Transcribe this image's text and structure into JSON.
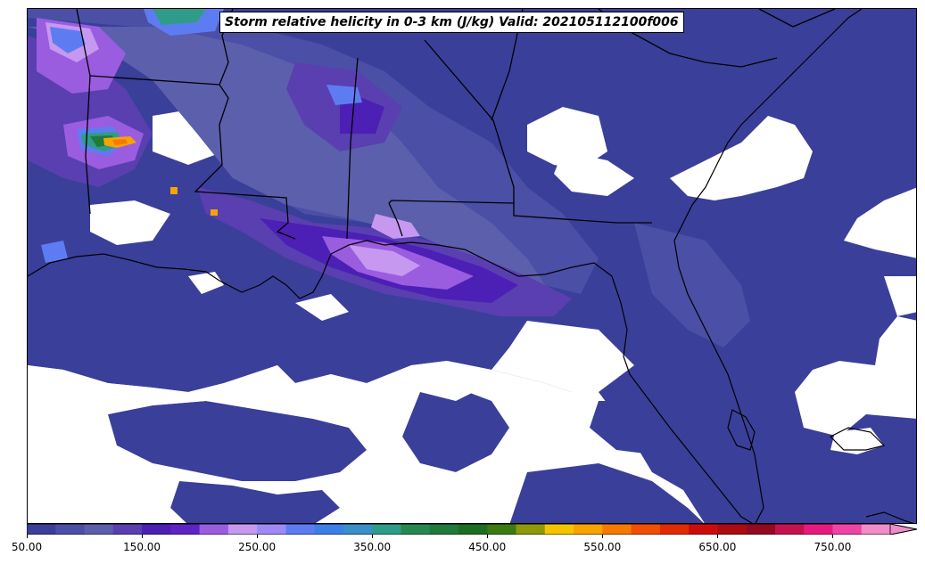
{
  "title": "Storm relative helicity in 0-3 km (J/kg) Valid: 202105112100f006",
  "colorbar": {
    "min": 50,
    "max": 800,
    "step": 25,
    "extend": "max",
    "tick_labels": [
      "50.00",
      "150.00",
      "250.00",
      "350.00",
      "450.00",
      "550.00",
      "650.00",
      "750.00"
    ],
    "colors": [
      "#3a3f9a",
      "#4b4fa6",
      "#5b5fac",
      "#5a3fb0",
      "#4c1fb5",
      "#5f22c4",
      "#9a5de0",
      "#c698f0",
      "#9f8af5",
      "#5e7cf2",
      "#3d7fe6",
      "#3a8fc9",
      "#2f9c8a",
      "#27884f",
      "#1f7a3c",
      "#1c6e22",
      "#3c7a12",
      "#8f9a0a",
      "#f5c400",
      "#f9a300",
      "#f77a00",
      "#f24f00",
      "#e22b00",
      "#cc0c0c",
      "#ad0b12",
      "#93091f",
      "#c4124f",
      "#e81a7f",
      "#f043a6",
      "#f08cc8"
    ]
  },
  "map": {
    "region": "U.S. Gulf Coast and Southeast",
    "overlays": [
      "coastlines",
      "state-borders"
    ]
  },
  "colors": {
    "background": "#ffffff",
    "border": "#000000"
  }
}
